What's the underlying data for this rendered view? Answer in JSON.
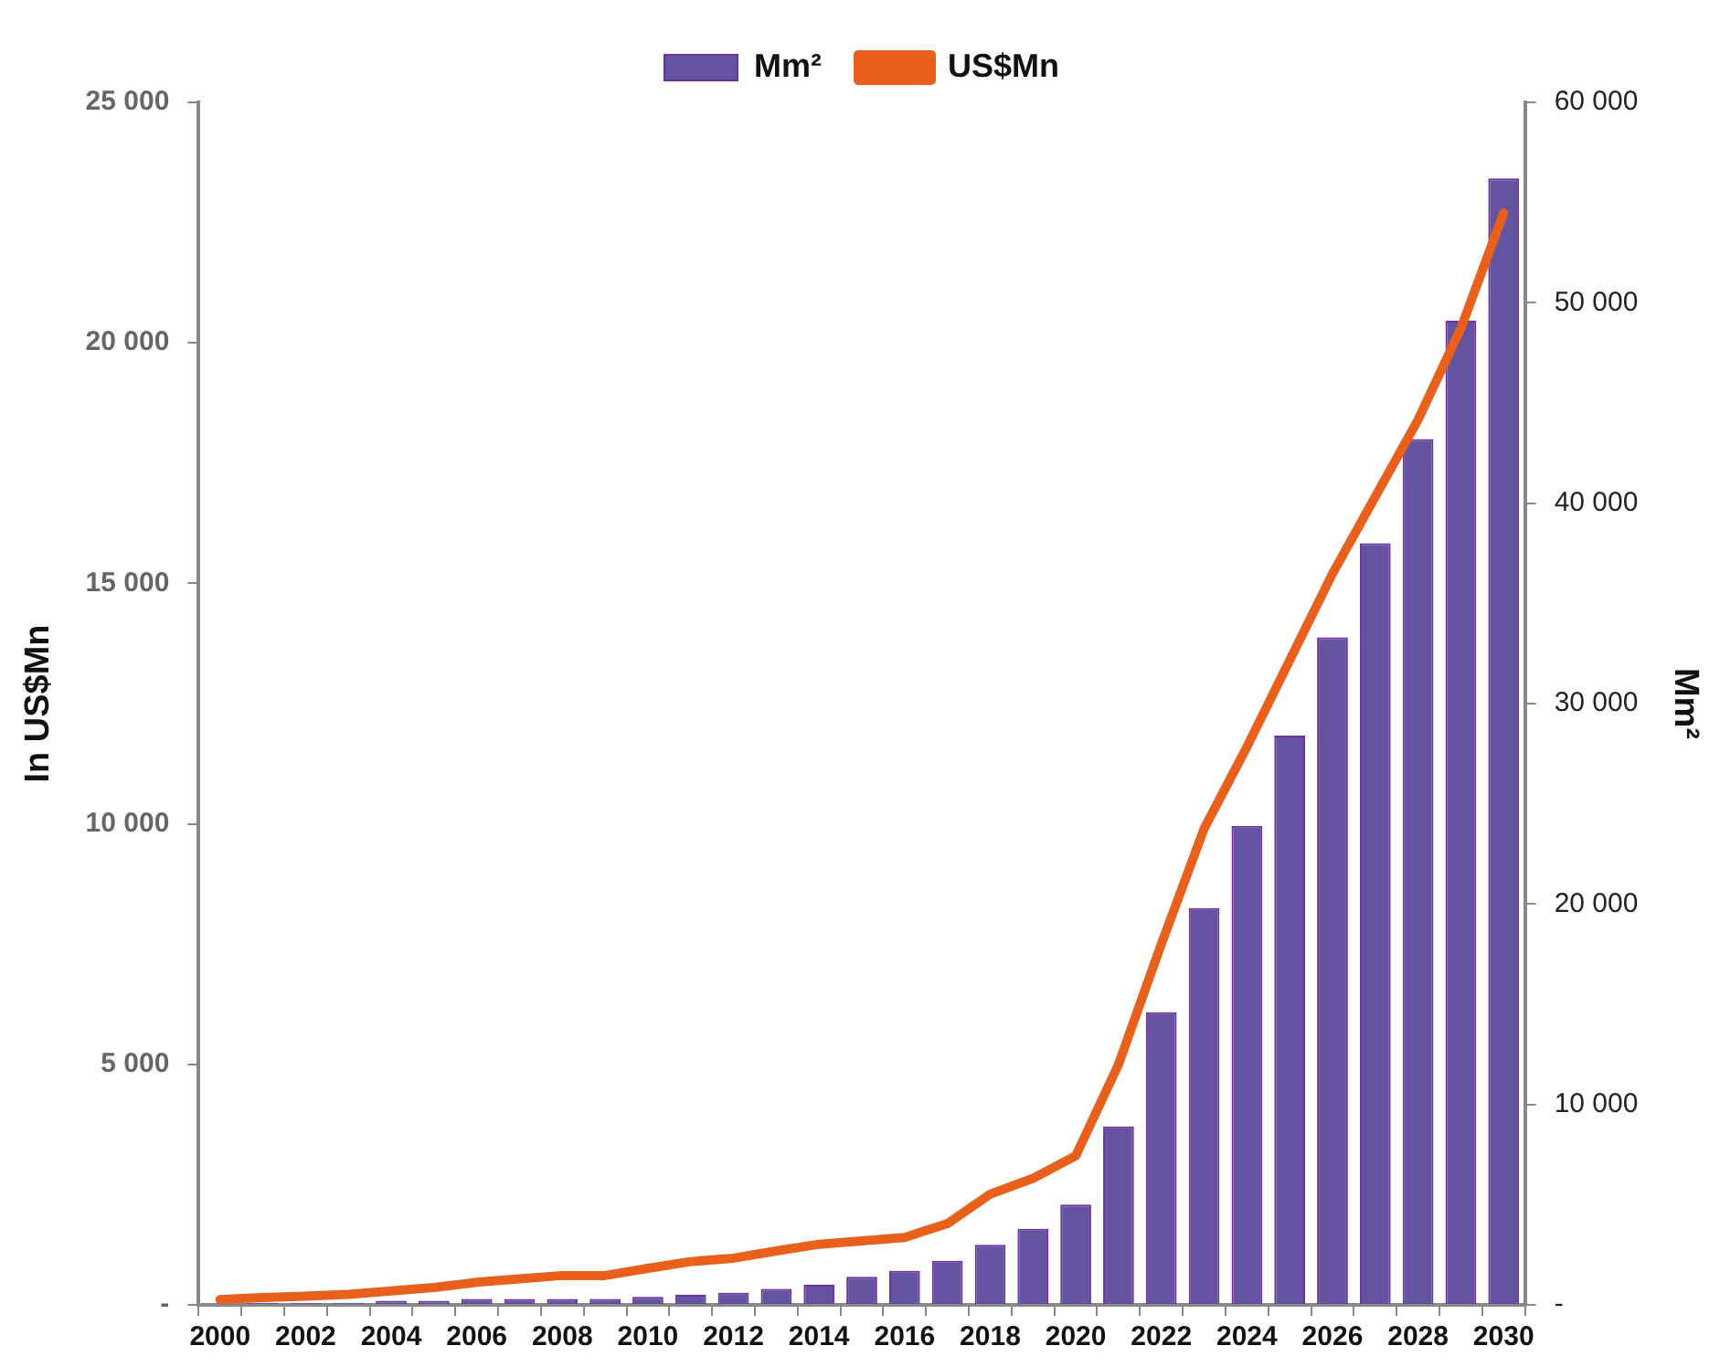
{
  "chart_data": {
    "type": "bar",
    "ylabel": "In US$Mn",
    "y2label": "Mm²",
    "categories": [
      "2000",
      null,
      "2002",
      null,
      "2004",
      null,
      "2006",
      null,
      "2008",
      null,
      "2010",
      null,
      "2012",
      null,
      "2014",
      null,
      "2016",
      null,
      "2018",
      null,
      "2020",
      null,
      "2022",
      null,
      "2024",
      null,
      "2026",
      null,
      "2028",
      null,
      "2030"
    ],
    "series": [
      {
        "name": "Mm²",
        "axis": "y2",
        "color": "#6353a0",
        "values": [
          0,
          100,
          100,
          100,
          200,
          200,
          300,
          300,
          300,
          300,
          400,
          500,
          600,
          800,
          1000,
          1400,
          1700,
          2200,
          3000,
          3800,
          5000,
          8900,
          14600,
          19800,
          23900,
          28400,
          33300,
          38000,
          43200,
          49100,
          56200
        ]
      },
      {
        "name": "US$Mn",
        "type": "line",
        "color": "#e8601c",
        "marker": "none",
        "line_style": "solid",
        "values": [
          110,
          150,
          180,
          220,
          290,
          360,
          470,
          540,
          610,
          610,
          760,
          900,
          970,
          1120,
          1260,
          1330,
          1400,
          1690,
          2300,
          2630,
          3100,
          5000,
          7500,
          9900,
          11600,
          13400,
          15200,
          16800,
          18400,
          20300,
          22700
        ]
      }
    ],
    "ylim": [
      0,
      25000
    ],
    "yticks": [
      {
        "value": 0,
        "label": "-"
      },
      {
        "value": 5000,
        "label": "5 000"
      },
      {
        "value": 10000,
        "label": "10 000"
      },
      {
        "value": 15000,
        "label": "15 000"
      },
      {
        "value": 20000,
        "label": "20 000"
      },
      {
        "value": 25000,
        "label": "25 000"
      }
    ],
    "y2lim": [
      0,
      60000
    ],
    "y2ticks": [
      {
        "value": 0,
        "label": "-"
      },
      {
        "value": 10000,
        "label": "10 000"
      },
      {
        "value": 20000,
        "label": "20 000"
      },
      {
        "value": 30000,
        "label": "30 000"
      },
      {
        "value": 40000,
        "label": "40 000"
      },
      {
        "value": 50000,
        "label": "50 000"
      },
      {
        "value": 60000,
        "label": "60 000"
      }
    ],
    "grid": false,
    "legend": "top"
  }
}
